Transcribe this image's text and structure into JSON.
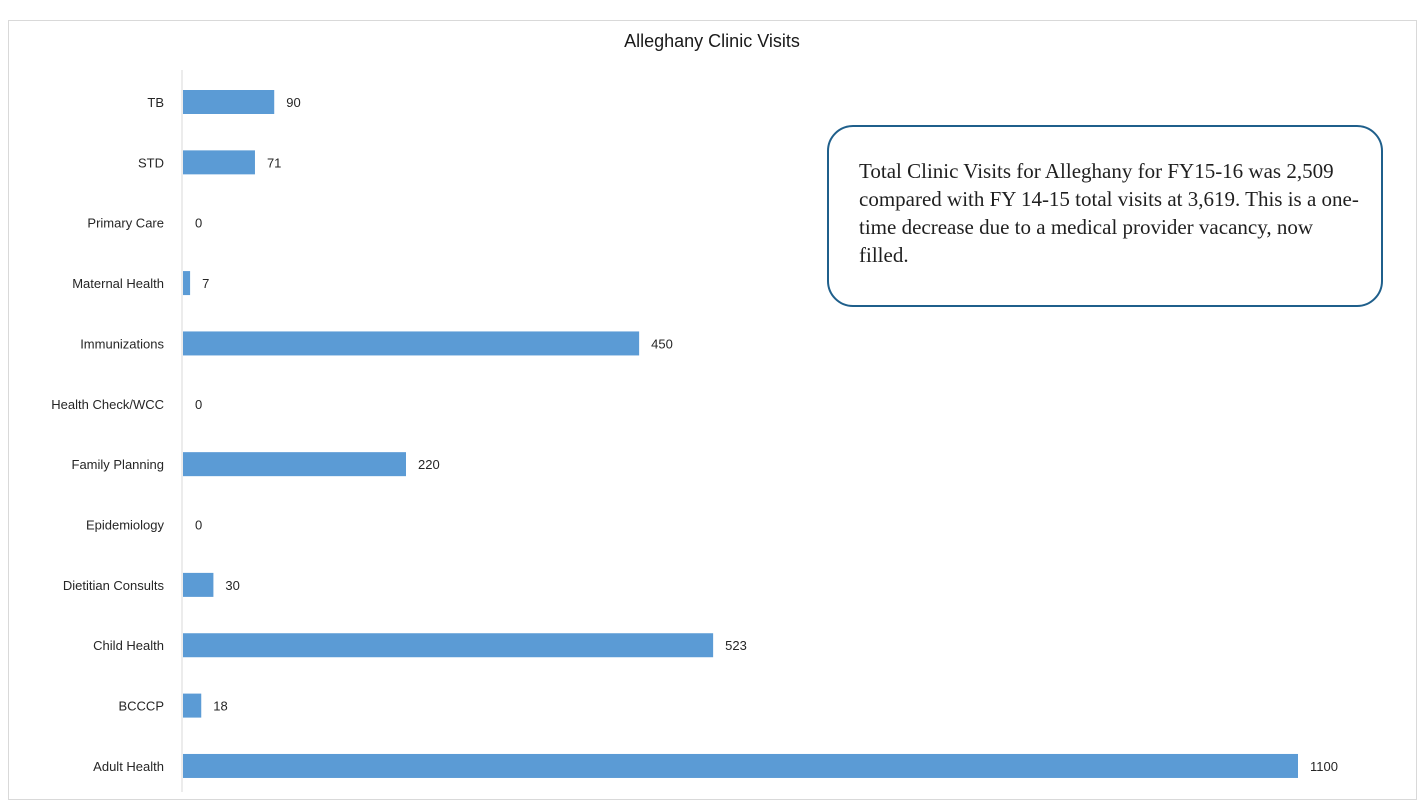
{
  "chart_data": {
    "type": "bar",
    "orientation": "horizontal",
    "title": "Alleghany Clinic Visits",
    "categories": [
      "TB",
      "STD",
      "Primary Care",
      "Maternal Health",
      "Immunizations",
      "Health Check/WCC",
      "Family Planning",
      "Epidemiology",
      "Dietitian Consults",
      "Child Health",
      "BCCCP",
      "Adult Health"
    ],
    "values": [
      90,
      71,
      0,
      7,
      450,
      0,
      220,
      0,
      30,
      523,
      18,
      1100
    ],
    "data_labels": true,
    "xlim": [
      0,
      1100
    ],
    "grid": false,
    "bar_color": "#5b9bd5"
  },
  "annotation": {
    "text": "Total Clinic Visits for Alleghany for FY15-16 was 2,509 compared with FY 14-15 total visits at 3,619. This is a one-time decrease due to a medical provider vacancy, now filled."
  },
  "colors": {
    "callout_border": "#1f5f8b",
    "text": "#262626",
    "axis": "#d9d9d9"
  }
}
